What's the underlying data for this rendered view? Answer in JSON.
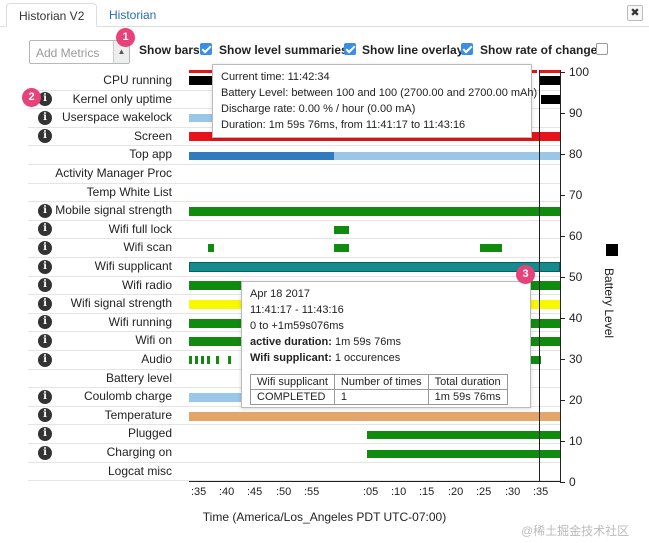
{
  "tabs": [
    {
      "label": "Historian V2",
      "active": true
    },
    {
      "label": "Historian",
      "active": false
    }
  ],
  "close_label": "✖",
  "controls": {
    "metric_placeholder": "Add Metrics",
    "options": [
      {
        "label": "Show bars",
        "checked": true
      },
      {
        "label": "Show level summaries",
        "checked": true
      },
      {
        "label": "Show line overlay",
        "checked": true
      },
      {
        "label": "Show rate of change",
        "checked": false
      }
    ]
  },
  "badges": [
    "1",
    "2",
    "3"
  ],
  "rows": [
    {
      "label": "CPU running",
      "info": false
    },
    {
      "label": "Kernel only uptime",
      "info": true
    },
    {
      "label": "Userspace wakelock",
      "info": true
    },
    {
      "label": "Screen",
      "info": true
    },
    {
      "label": "Top app",
      "info": false
    },
    {
      "label": "Activity Manager Proc",
      "info": false
    },
    {
      "label": "Temp White List",
      "info": false
    },
    {
      "label": "Mobile signal strength",
      "info": true
    },
    {
      "label": "Wifi full lock",
      "info": true
    },
    {
      "label": "Wifi scan",
      "info": true
    },
    {
      "label": "Wifi supplicant",
      "info": true
    },
    {
      "label": "Wifi radio",
      "info": true
    },
    {
      "label": "Wifi signal strength",
      "info": true
    },
    {
      "label": "Wifi running",
      "info": true
    },
    {
      "label": "Wifi on",
      "info": true
    },
    {
      "label": "Audio",
      "info": true
    },
    {
      "label": "Battery level",
      "info": false
    },
    {
      "label": "Coulomb charge",
      "info": true
    },
    {
      "label": "Temperature",
      "info": true
    },
    {
      "label": "Plugged",
      "info": true
    },
    {
      "label": "Charging on",
      "info": true
    },
    {
      "label": "Logcat misc",
      "info": false
    }
  ],
  "colors": {
    "red": "#e8131b",
    "black": "#000000",
    "blue": "#2e7bbd",
    "light_blue": "#9ac7e8",
    "green": "#118a10",
    "teal": "#158b8e",
    "yellow": "#f8f800",
    "orange": "#e4a56a",
    "pink_badge": "#e8427a"
  },
  "x_axis": {
    "ticks": [
      ":35",
      ":40",
      ":45",
      ":50",
      ":55",
      ":05",
      ":10",
      ":15",
      ":20",
      ":25",
      ":30",
      ":35"
    ],
    "label": "Time (America/Los_Angeles PDT UTC-07:00)"
  },
  "y_axis": {
    "ticks": [
      "100",
      "90",
      "80",
      "70",
      "60",
      "50",
      "40",
      "30",
      "20",
      "10",
      "0"
    ],
    "label": "Battery Level"
  },
  "tooltip_top": {
    "lines": [
      "Current time: 11:42:34",
      "Battery Level: between 100 and 100 (2700.00 and 2700.00 mAh)",
      "Discharge rate: 0.00 % / hour (0.00 mA)",
      "Duration: 1m 59s 76ms, from 11:41:17 to 11:43:16"
    ]
  },
  "tooltip_bottom": {
    "date": "Apr 18 2017",
    "time_range": "11:41:17 - 11:43:16",
    "offset_range": "0 to +1m59s076ms",
    "active_label": "active duration:",
    "active_value": " 1m 59s 76ms",
    "metric_label": "Wifi supplicant:",
    "metric_value": " 1 occurences",
    "table": {
      "headers": [
        "Wifi supplicant",
        "Number of times",
        "Total duration"
      ],
      "rows": [
        [
          "COMPLETED",
          "1",
          "1m 59s 76ms"
        ]
      ]
    }
  },
  "watermark": "@稀土掘金技术社区"
}
